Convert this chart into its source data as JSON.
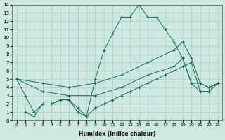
{
  "xlabel": "Humidex (Indice chaleur)",
  "bg_color": "#cce8e0",
  "grid_color": "#aacccc",
  "line_color": "#1a6b5a",
  "xlim": [
    -0.5,
    23.5
  ],
  "ylim": [
    0,
    14
  ],
  "xticks": [
    0,
    1,
    2,
    3,
    4,
    5,
    6,
    7,
    8,
    9,
    10,
    11,
    12,
    13,
    14,
    15,
    16,
    17,
    18,
    19,
    20,
    21,
    22,
    23
  ],
  "yticks": [
    0,
    1,
    2,
    3,
    4,
    5,
    6,
    7,
    8,
    9,
    10,
    11,
    12,
    13,
    14
  ],
  "line1_x": [
    0,
    1,
    2,
    3,
    4,
    5,
    6,
    7,
    8,
    9,
    10,
    11,
    12,
    13,
    14,
    15,
    16,
    17,
    18,
    19,
    20,
    21,
    22,
    23
  ],
  "line1_y": [
    5,
    3,
    1,
    2,
    2,
    2.5,
    2.5,
    1,
    0.5,
    5,
    8.5,
    10.5,
    12.5,
    12.5,
    14,
    12.5,
    12.5,
    11,
    9.5,
    7.5,
    4.5,
    4.5,
    4,
    4.5
  ],
  "line2_x": [
    0,
    3,
    6,
    9,
    12,
    15,
    18,
    19,
    20,
    21,
    22,
    23
  ],
  "line2_y": [
    5,
    4.5,
    4,
    4.5,
    5.5,
    7,
    8.5,
    9.5,
    7.5,
    4.5,
    4,
    4.5
  ],
  "line3_x": [
    0,
    3,
    6,
    9,
    12,
    15,
    18,
    19,
    20,
    21,
    22,
    23
  ],
  "line3_y": [
    5,
    3.5,
    3,
    3,
    4,
    5.5,
    6.5,
    7.5,
    4.5,
    3.5,
    3.5,
    4.5
  ],
  "line4_x": [
    1,
    2,
    3,
    4,
    5,
    6,
    7,
    8,
    9,
    10,
    11,
    12,
    13,
    14,
    15,
    16,
    17,
    18,
    19,
    20,
    21,
    22,
    23
  ],
  "line4_y": [
    1,
    0.5,
    2,
    2,
    2.5,
    2.5,
    1.5,
    0.5,
    1.5,
    2,
    2.5,
    3,
    3.5,
    4,
    4.5,
    5,
    5.5,
    6,
    6.5,
    7,
    3.5,
    3.5,
    4.5
  ]
}
